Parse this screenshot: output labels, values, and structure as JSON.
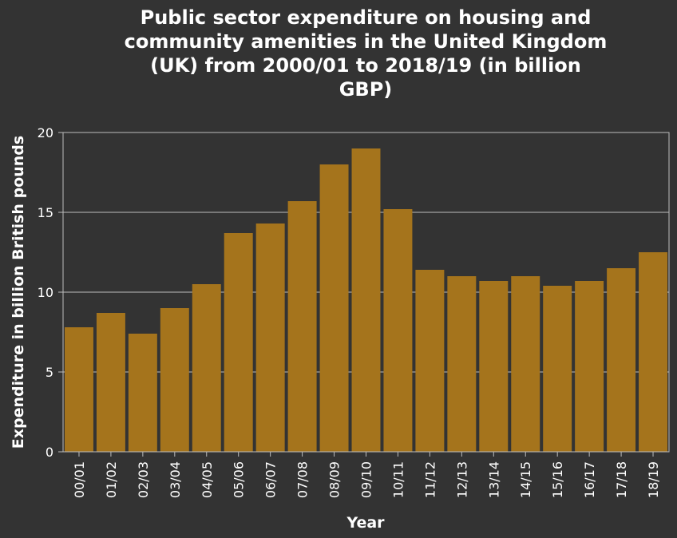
{
  "chart_data": {
    "type": "bar",
    "title_lines": [
      "Public sector expenditure on housing and",
      "community amenities in the United Kingdom",
      "(UK) from 2000/01 to 2018/19 (in billion",
      "GBP)"
    ],
    "xlabel": "Year",
    "ylabel": "Expenditure in billion British pounds",
    "categories": [
      "00/01",
      "01/02",
      "02/03",
      "03/04",
      "04/05",
      "05/06",
      "06/07",
      "07/08",
      "08/09",
      "09/10",
      "10/11",
      "11/12",
      "12/13",
      "13/14",
      "14/15",
      "15/16",
      "16/17",
      "17/18",
      "18/19"
    ],
    "values": [
      7.8,
      8.7,
      7.4,
      9.0,
      10.5,
      13.7,
      14.3,
      15.7,
      18.0,
      19.0,
      15.2,
      11.4,
      11.0,
      10.7,
      11.0,
      10.4,
      10.7,
      11.5,
      12.5
    ],
    "ylim": [
      0,
      20
    ],
    "yticks": [
      0,
      5,
      10,
      15,
      20
    ],
    "grid": true,
    "colors": {
      "bar": "#a5741c",
      "background": "#333333"
    }
  }
}
